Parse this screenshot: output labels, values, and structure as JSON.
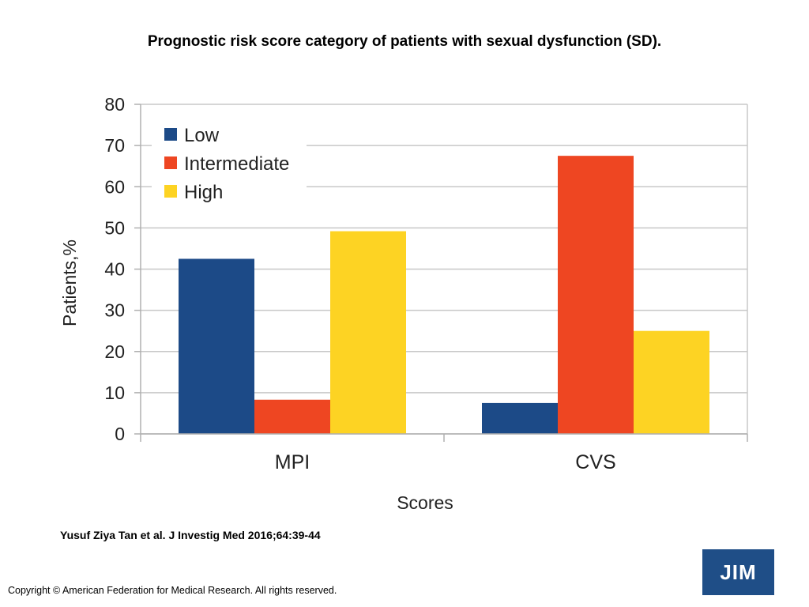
{
  "title": "Prognostic risk score category of patients with sexual dysfunction (SD).",
  "citation": "Yusuf Ziya Tan et al. J Investig Med 2016;64:39-44",
  "copyright": "Copyright © American Federation for Medical Research. All rights reserved.",
  "logo_text": "JIM",
  "colors": {
    "low": "#1c4a87",
    "intermediate": "#ee4622",
    "high": "#fdd323",
    "logo_bg": "#1f4e87"
  },
  "chart_data": {
    "type": "bar",
    "categories": [
      "MPI",
      "CVS"
    ],
    "series": [
      {
        "name": "Low",
        "values": [
          42.5,
          7.5
        ]
      },
      {
        "name": "Intermediate",
        "values": [
          8.3,
          67.5
        ]
      },
      {
        "name": "High",
        "values": [
          49.2,
          25.0
        ]
      }
    ],
    "xlabel": "Scores",
    "ylabel": "Patients,%",
    "ylim": [
      0,
      80
    ],
    "yticks": [
      0,
      10,
      20,
      30,
      40,
      50,
      60,
      70,
      80
    ],
    "grid": true,
    "legend": "top-left"
  }
}
